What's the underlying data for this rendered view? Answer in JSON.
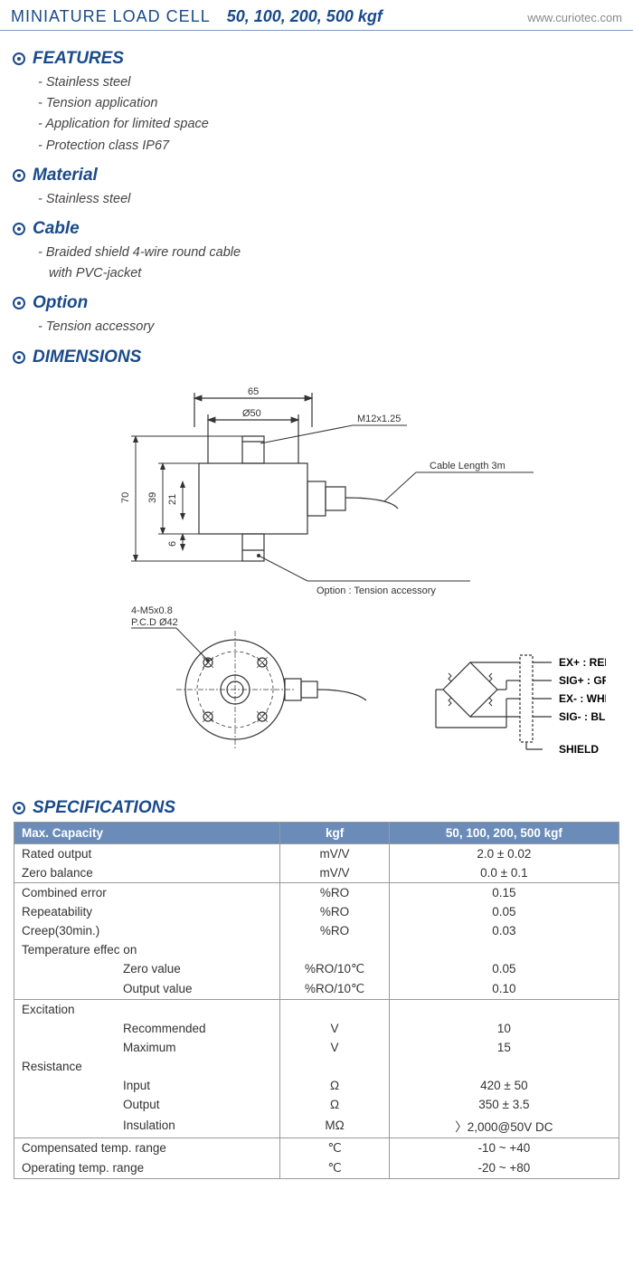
{
  "header": {
    "title": "MINIATURE LOAD CELL",
    "models": "50, 100, 200, 500 kgf",
    "url": "www.curiotec.com"
  },
  "colors": {
    "accent": "#1a4a8a",
    "header_rule": "#7a99c4",
    "table_header_bg": "#6b8cb8",
    "table_header_fg": "#ffffff",
    "border": "#999999",
    "text": "#333333"
  },
  "sections": {
    "features": {
      "title": "FEATURES",
      "items": [
        "Stainless steel",
        "Tension application",
        "Application for limited space",
        "Protection class IP67"
      ]
    },
    "material": {
      "title": "Material",
      "items": [
        "Stainless steel"
      ]
    },
    "cable": {
      "title": "Cable",
      "items": [
        "Braided shield 4-wire round cable",
        "with PVC-jacket"
      ],
      "second_line_no_dash": true
    },
    "option": {
      "title": "Option",
      "items": [
        "Tension accessory"
      ]
    },
    "dimensions": {
      "title": "DIMENSIONS"
    },
    "specifications": {
      "title": "SPECIFICATIONS"
    }
  },
  "dimensions": {
    "width_overall": "65",
    "body_dia": "Ø50",
    "height_overall": "70",
    "body_height": "39",
    "inner_height": "21",
    "stud_bottom": "6",
    "thread": "M12x1.25",
    "cable": "Cable Length 3m",
    "option_label": "Option : Tension accessory",
    "bolt_pattern": "4-M5x0.8\nP.C.D Ø42"
  },
  "wiring": {
    "labels": [
      "EX+ : RED",
      "SIG+ : GREEN",
      "EX- : WHITE",
      "SIG- : BLUE",
      "SHIELD"
    ]
  },
  "spec_table": {
    "header": [
      "Max. Capacity",
      "kgf",
      "50, 100, 200, 500 kgf"
    ],
    "groups": [
      {
        "sep": true,
        "rows": [
          [
            "Rated output",
            "mV/V",
            "2.0 ± 0.02"
          ],
          [
            "Zero balance",
            "mV/V",
            "0.0 ± 0.1"
          ]
        ]
      },
      {
        "sep": true,
        "rows": [
          [
            "Combined error",
            "%RO",
            "0.15"
          ],
          [
            "Repeatability",
            "%RO",
            "0.05"
          ],
          [
            "Creep(30min.)",
            "%RO",
            "0.03"
          ],
          [
            "Temperature effec on",
            "",
            ""
          ],
          [
            "Zero value",
            "%RO/10℃",
            "0.05",
            true
          ],
          [
            "Output value",
            "%RO/10℃",
            "0.10",
            true
          ]
        ]
      },
      {
        "sep": true,
        "rows": [
          [
            "Excitation",
            "",
            ""
          ],
          [
            "Recommended",
            "V",
            "10",
            true
          ],
          [
            "Maximum",
            "V",
            "15",
            true
          ],
          [
            "Resistance",
            "",
            ""
          ],
          [
            "Input",
            "Ω",
            "420 ± 50",
            true
          ],
          [
            "Output",
            "Ω",
            "350 ± 3.5",
            true
          ],
          [
            "Insulation",
            "MΩ",
            "〉2,000@50V DC",
            true
          ]
        ]
      },
      {
        "sep": true,
        "rows": [
          [
            "Compensated temp. range",
            "℃",
            "-10 ~ +40"
          ],
          [
            "Operating temp. range",
            "℃",
            "-20 ~ +80"
          ]
        ],
        "last": true
      }
    ]
  }
}
